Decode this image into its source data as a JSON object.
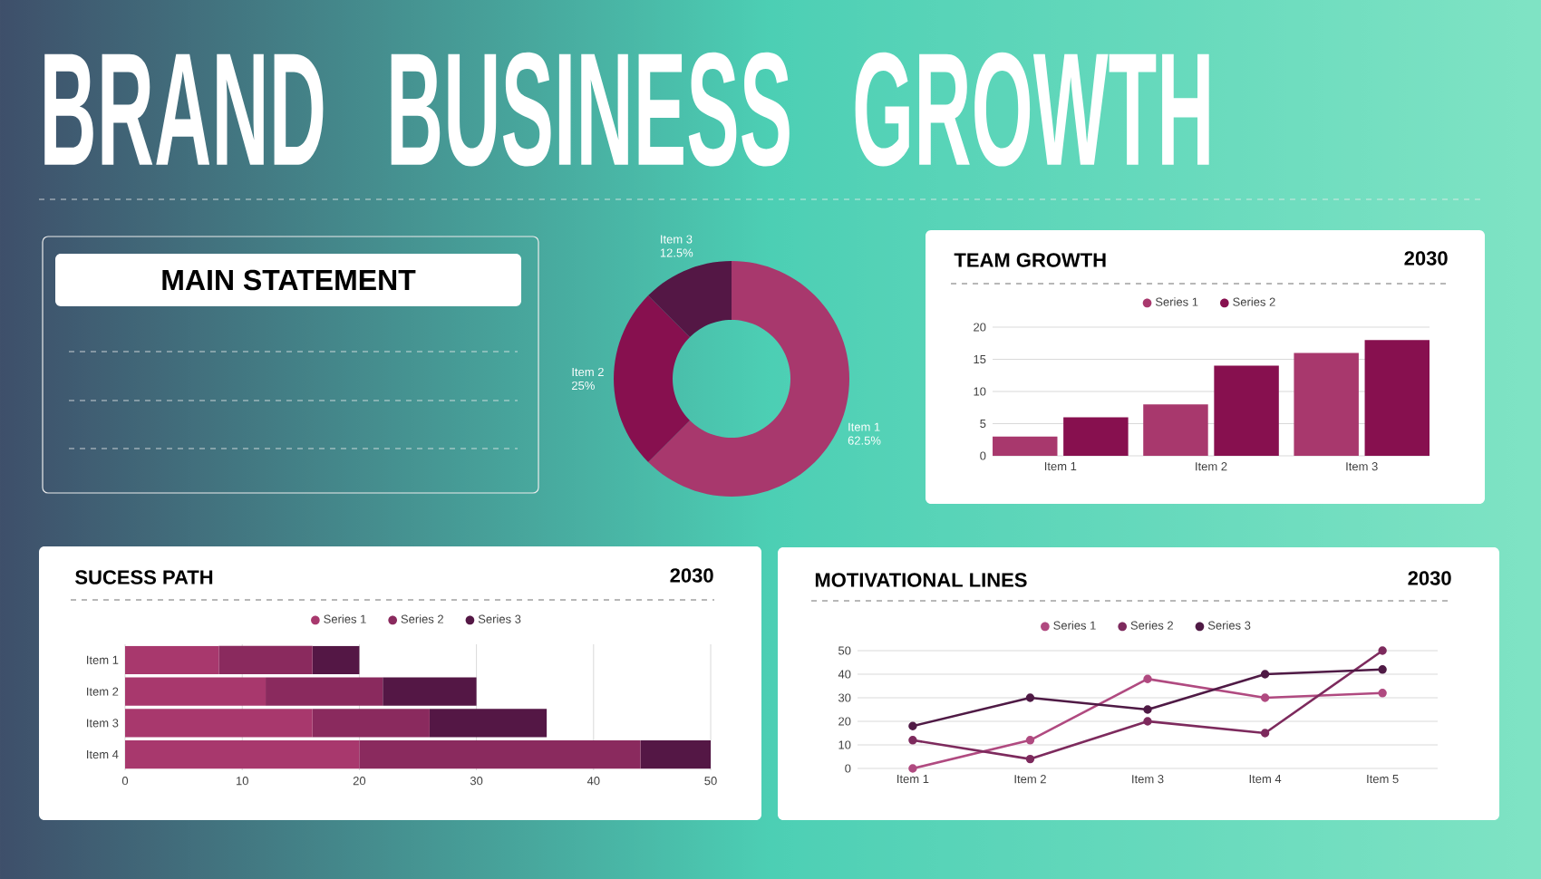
{
  "chart_data": [
    {
      "type": "other",
      "title": "BRAND BUSINESS GROWTH",
      "subtitle": "MAIN STATEMENT"
    },
    {
      "type": "donut",
      "categories": [
        "Item 1",
        "Item 2",
        "Item 3"
      ],
      "values": [
        62.5,
        25,
        12.5
      ],
      "colors": [
        "#a8386d",
        "#87104f",
        "#541745"
      ],
      "value_labels": [
        "62.5%",
        "25%",
        "12.5%"
      ]
    },
    {
      "type": "bar",
      "title": "TEAM GROWTH",
      "subtitle": "2030",
      "categories": [
        "Item 1",
        "Item 2",
        "Item 3"
      ],
      "series": [
        {
          "name": "Series 1",
          "color": "#a8386d",
          "values": [
            3,
            8,
            16
          ]
        },
        {
          "name": "Series 2",
          "color": "#87104f",
          "values": [
            6,
            14,
            18
          ]
        }
      ],
      "ylim": [
        0,
        20
      ],
      "yticks": [
        0,
        5,
        10,
        15,
        20
      ],
      "grid": "y",
      "legend": "top"
    },
    {
      "type": "bar",
      "orientation": "horizontal",
      "stacked": true,
      "title": "SUCESS PATH",
      "subtitle": "2030",
      "categories": [
        "Item 1",
        "Item 2",
        "Item 3",
        "Item 4"
      ],
      "series": [
        {
          "name": "Series 1",
          "color": "#a8386d",
          "values": [
            8,
            12,
            16,
            20
          ]
        },
        {
          "name": "Series 2",
          "color": "#8a2a5e",
          "values": [
            8,
            10,
            10,
            24
          ]
        },
        {
          "name": "Series 3",
          "color": "#541745",
          "values": [
            4,
            8,
            10,
            6
          ]
        }
      ],
      "xlim": [
        0,
        50
      ],
      "xticks": [
        0,
        10,
        20,
        30,
        40,
        50
      ],
      "grid": "x",
      "legend": "top"
    },
    {
      "type": "line",
      "title": "MOTIVATIONAL LINES",
      "subtitle": "2030",
      "categories": [
        "Item 1",
        "Item 2",
        "Item 3",
        "Item 4",
        "Item 5"
      ],
      "series": [
        {
          "name": "Series 1",
          "color": "#b04a80",
          "values": [
            0,
            12,
            38,
            30,
            32
          ]
        },
        {
          "name": "Series 2",
          "color": "#7d2a5d",
          "values": [
            12,
            4,
            20,
            15,
            50
          ]
        },
        {
          "name": "Series 3",
          "color": "#4f1a45",
          "values": [
            18,
            30,
            25,
            40,
            42
          ]
        }
      ],
      "ylim": [
        0,
        50
      ],
      "yticks": [
        0,
        10,
        20,
        30,
        40,
        50
      ],
      "grid": "y",
      "legend": "top",
      "marker": "circle",
      "line_style": "solid"
    }
  ]
}
